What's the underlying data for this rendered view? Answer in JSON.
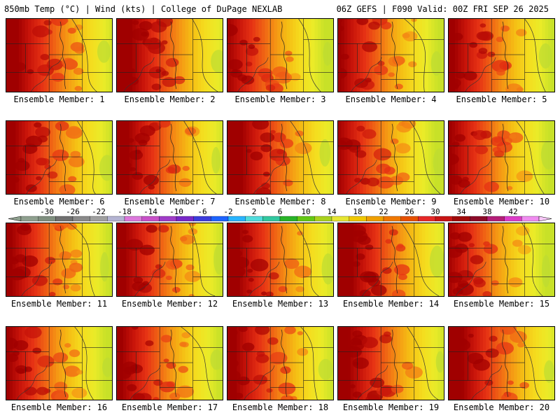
{
  "header": {
    "left": "850mb Temp (°C) | Wind (kts) | College of DuPage NEXLAB",
    "right": "06Z GEFS | F090 Valid: 00Z FRI SEP 26 2025"
  },
  "panels": [
    {
      "caption": "Ensemble Member: 1"
    },
    {
      "caption": "Ensemble Member: 2"
    },
    {
      "caption": "Ensemble Member: 3"
    },
    {
      "caption": "Ensemble Member: 4"
    },
    {
      "caption": "Ensemble Member: 5"
    },
    {
      "caption": "Ensemble Member: 6"
    },
    {
      "caption": "Ensemble Member: 7"
    },
    {
      "caption": "Ensemble Member: 8"
    },
    {
      "caption": "Ensemble Member: 9"
    },
    {
      "caption": "Ensemble Member: 10"
    },
    {
      "caption": "Ensemble Member: 11"
    },
    {
      "caption": "Ensemble Member: 12"
    },
    {
      "caption": "Ensemble Member: 13"
    },
    {
      "caption": "Ensemble Member: 14"
    },
    {
      "caption": "Ensemble Member: 15"
    },
    {
      "caption": "Ensemble Member: 16"
    },
    {
      "caption": "Ensemble Member: 17"
    },
    {
      "caption": "Ensemble Member: 18"
    },
    {
      "caption": "Ensemble Member: 19"
    },
    {
      "caption": "Ensemble Member: 20"
    }
  ],
  "colorbar": {
    "labels": [
      "-30",
      "-26",
      "-22",
      "-18",
      "-14",
      "-10",
      "-6",
      "-2",
      "2",
      "6",
      "10",
      "14",
      "18",
      "22",
      "26",
      "30",
      "34",
      "38",
      "42"
    ],
    "colors": [
      "#8fa08f",
      "#7f8f7f",
      "#707070",
      "#8a8a8a",
      "#a0a0a0",
      "#b4b4d2",
      "#dc78dc",
      "#c850c8",
      "#a03cc8",
      "#7828c8",
      "#3c3cdc",
      "#1e64ff",
      "#28b4ff",
      "#50dcdc",
      "#32c8a0",
      "#28b428",
      "#64c814",
      "#aad21e",
      "#e6e632",
      "#f0c800",
      "#f0a000",
      "#f07800",
      "#e65000",
      "#e62828",
      "#c81414",
      "#a00a0a",
      "#8c0a28",
      "#b41e78",
      "#dc3cc8",
      "#f08cf0"
    ]
  }
}
